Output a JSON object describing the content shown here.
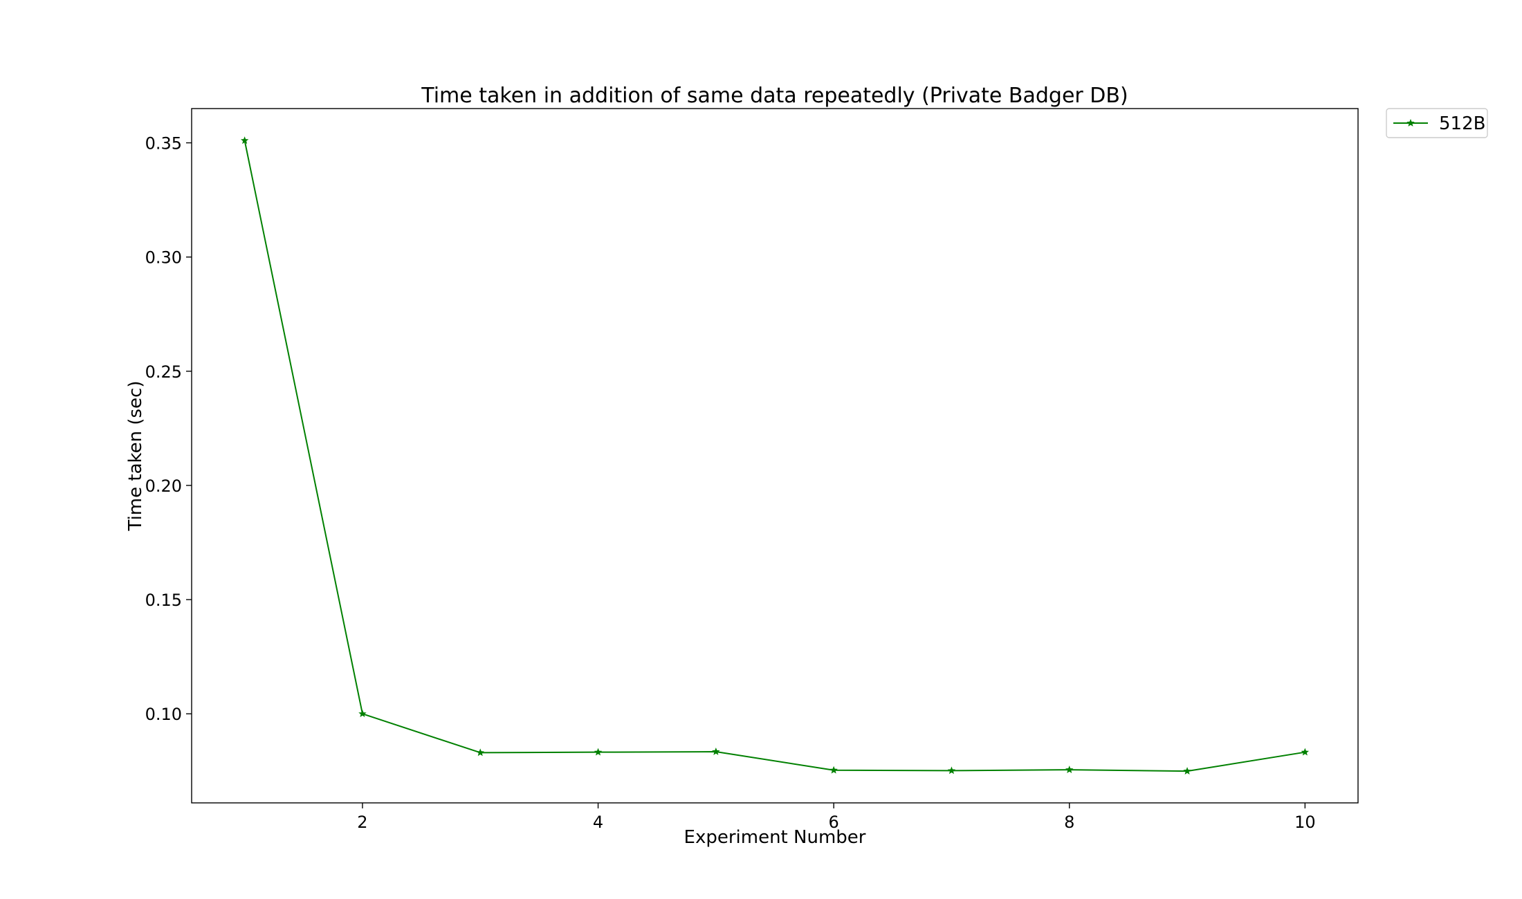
{
  "chart_data": {
    "type": "line",
    "title": "Time taken in addition of same data repeatedly (Private Badger DB)",
    "xlabel": "Experiment Number",
    "ylabel": "Time taken (sec)",
    "xlim": [
      0.55,
      10.45
    ],
    "ylim": [
      0.061,
      0.365
    ],
    "xticks": [
      2,
      4,
      6,
      8,
      10
    ],
    "yticks": [
      0.1,
      0.15,
      0.2,
      0.25,
      0.3,
      0.35
    ],
    "ytick_labels": [
      "0.10",
      "0.15",
      "0.20",
      "0.25",
      "0.30",
      "0.35"
    ],
    "grid": false,
    "legend_position": "outside-top-right",
    "x": [
      1,
      2,
      3,
      4,
      5,
      6,
      7,
      8,
      9,
      10
    ],
    "series": [
      {
        "name": "512B",
        "color": "#008000",
        "marker": "star",
        "values": [
          0.351,
          0.1,
          0.083,
          0.0832,
          0.0834,
          0.0753,
          0.0751,
          0.0755,
          0.0749,
          0.0832
        ]
      }
    ]
  }
}
